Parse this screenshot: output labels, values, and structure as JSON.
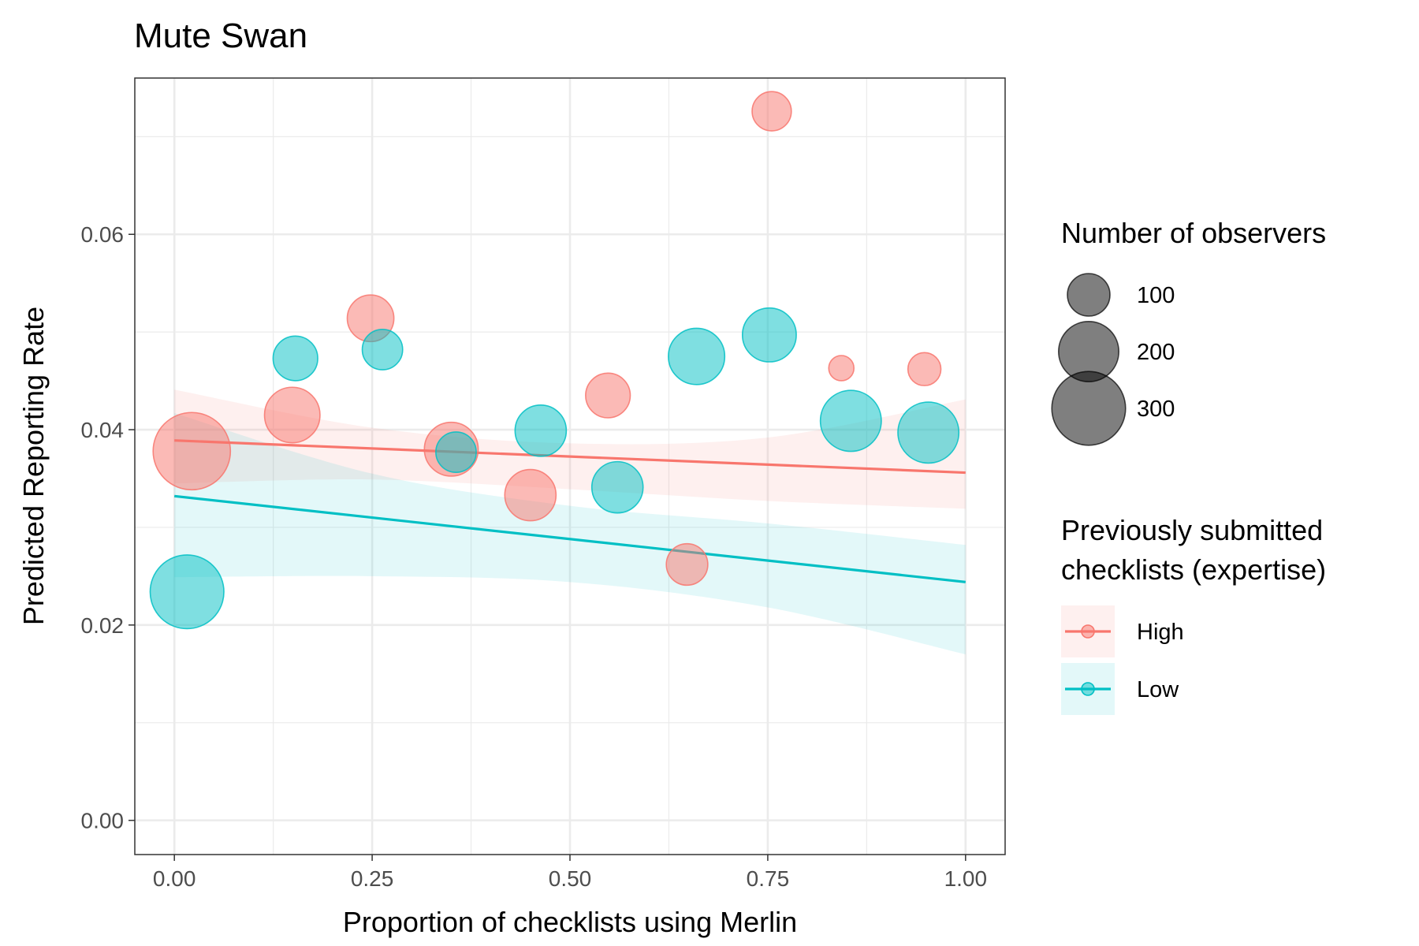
{
  "chart_data": {
    "type": "scatter",
    "title": "Mute Swan",
    "xlabel": "Proportion of checklists using Merlin",
    "ylabel": "Predicted Reporting Rate",
    "xlim": [
      -0.05,
      1.05
    ],
    "ylim": [
      -0.0035,
      0.076
    ],
    "x_ticks": [
      0,
      0.25,
      0.5,
      0.75,
      1
    ],
    "x_tick_labels": [
      "0.00",
      "0.25",
      "0.50",
      "0.75",
      "1.00"
    ],
    "y_ticks": [
      0,
      0.02,
      0.04,
      0.06
    ],
    "y_tick_labels": [
      "0.00",
      "0.02",
      "0.04",
      "0.06"
    ],
    "grid": true,
    "size_legend": {
      "title": "Number of observers",
      "entries": [
        {
          "label": "100",
          "value": 100
        },
        {
          "label": "200",
          "value": 200
        },
        {
          "label": "300",
          "value": 300
        }
      ]
    },
    "color_legend": {
      "title_lines": [
        "Previously submitted",
        "checklists (expertise)"
      ],
      "placement": "right"
    },
    "series": [
      {
        "name": "High",
        "color": "#F8766D",
        "points": [
          {
            "x": 0.022,
            "y": 0.0378,
            "n": 330
          },
          {
            "x": 0.149,
            "y": 0.0415,
            "n": 170
          },
          {
            "x": 0.248,
            "y": 0.0514,
            "n": 120
          },
          {
            "x": 0.35,
            "y": 0.038,
            "n": 160
          },
          {
            "x": 0.45,
            "y": 0.0333,
            "n": 145
          },
          {
            "x": 0.548,
            "y": 0.0435,
            "n": 110
          },
          {
            "x": 0.648,
            "y": 0.0262,
            "n": 95
          },
          {
            "x": 0.755,
            "y": 0.0726,
            "n": 85
          },
          {
            "x": 0.843,
            "y": 0.0463,
            "n": 35
          },
          {
            "x": 0.948,
            "y": 0.0462,
            "n": 60
          }
        ],
        "fit": {
          "x": [
            0,
            1
          ],
          "y": [
            0.0389,
            0.0356
          ]
        },
        "ci": {
          "x": [
            0,
            0.25,
            0.5,
            0.75,
            1
          ],
          "lower": [
            0.0345,
            0.0349,
            0.0339,
            0.0327,
            0.0319
          ],
          "upper": [
            0.0441,
            0.0402,
            0.0386,
            0.0392,
            0.0431
          ]
        }
      },
      {
        "name": "Low",
        "color": "#00BFC4",
        "points": [
          {
            "x": 0.016,
            "y": 0.0234,
            "n": 300
          },
          {
            "x": 0.153,
            "y": 0.0473,
            "n": 110
          },
          {
            "x": 0.263,
            "y": 0.0482,
            "n": 90
          },
          {
            "x": 0.356,
            "y": 0.0377,
            "n": 90
          },
          {
            "x": 0.463,
            "y": 0.0399,
            "n": 145
          },
          {
            "x": 0.56,
            "y": 0.0341,
            "n": 145
          },
          {
            "x": 0.66,
            "y": 0.0475,
            "n": 175
          },
          {
            "x": 0.752,
            "y": 0.0497,
            "n": 160
          },
          {
            "x": 0.855,
            "y": 0.0409,
            "n": 205
          },
          {
            "x": 0.953,
            "y": 0.0397,
            "n": 205
          }
        ],
        "fit": {
          "x": [
            0,
            1
          ],
          "y": [
            0.0332,
            0.0244
          ]
        },
        "ci": {
          "x": [
            0,
            0.25,
            0.5,
            0.75,
            1
          ],
          "lower": [
            0.0249,
            0.025,
            0.0244,
            0.0218,
            0.017
          ],
          "upper": [
            0.0417,
            0.0355,
            0.0322,
            0.0304,
            0.0282
          ]
        }
      }
    ]
  }
}
